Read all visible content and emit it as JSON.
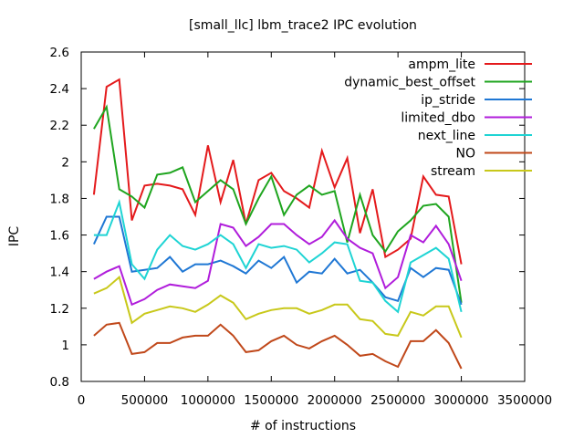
{
  "chart_data": {
    "type": "line",
    "title": "[small_llc] lbm_trace2 IPC evolution",
    "xlabel": "# of instructions",
    "ylabel": "IPC",
    "xlim": [
      0,
      3500000
    ],
    "ylim": [
      0.8,
      2.6
    ],
    "xticks": [
      0,
      500000,
      1000000,
      1500000,
      2000000,
      2500000,
      3000000,
      3500000
    ],
    "xtick_labels": [
      "0",
      "500000",
      "1000000",
      "1500000",
      "2000000",
      "2500000",
      "3000000",
      "3500000"
    ],
    "yticks": [
      0.8,
      1,
      1.2,
      1.4,
      1.6,
      1.8,
      2,
      2.2,
      2.4,
      2.6
    ],
    "ytick_labels": [
      "0.8",
      "1",
      "1.2",
      "1.4",
      "1.6",
      "1.8",
      "2",
      "2.2",
      "2.4",
      "2.6"
    ],
    "grid": false,
    "legend_position": "top-right",
    "x": [
      100000,
      200000,
      300000,
      400000,
      500000,
      600000,
      700000,
      800000,
      900000,
      1000000,
      1100000,
      1200000,
      1300000,
      1400000,
      1500000,
      1600000,
      1700000,
      1800000,
      1900000,
      2000000,
      2100000,
      2200000,
      2300000,
      2400000,
      2500000,
      2600000,
      2700000,
      2800000,
      2900000,
      3000000
    ],
    "series": [
      {
        "name": "ampm_lite",
        "color": "#e41a1c",
        "values": [
          1.82,
          2.41,
          2.45,
          1.68,
          1.87,
          1.88,
          1.87,
          1.85,
          1.71,
          2.09,
          1.78,
          2.01,
          1.66,
          1.9,
          1.94,
          1.84,
          1.8,
          1.75,
          2.06,
          1.86,
          2.02,
          1.61,
          1.85,
          1.48,
          1.52,
          1.58,
          1.92,
          1.82,
          1.81,
          1.44
        ]
      },
      {
        "name": "dynamic_best_offset",
        "color": "#1fa51f",
        "values": [
          2.18,
          2.3,
          1.85,
          1.81,
          1.75,
          1.93,
          1.94,
          1.97,
          1.78,
          1.84,
          1.9,
          1.85,
          1.66,
          1.8,
          1.92,
          1.71,
          1.82,
          1.87,
          1.82,
          1.84,
          1.56,
          1.82,
          1.6,
          1.51,
          1.62,
          1.68,
          1.76,
          1.77,
          1.7,
          1.23
        ]
      },
      {
        "name": "ip_stride",
        "color": "#1f77d4",
        "values": [
          1.55,
          1.7,
          1.7,
          1.4,
          1.41,
          1.42,
          1.48,
          1.4,
          1.44,
          1.44,
          1.46,
          1.43,
          1.39,
          1.46,
          1.42,
          1.48,
          1.34,
          1.4,
          1.39,
          1.47,
          1.39,
          1.41,
          1.34,
          1.26,
          1.24,
          1.42,
          1.37,
          1.42,
          1.41,
          1.22
        ]
      },
      {
        "name": "limited_dbo",
        "color": "#b01ddb",
        "values": [
          1.36,
          1.4,
          1.43,
          1.22,
          1.25,
          1.3,
          1.33,
          1.32,
          1.31,
          1.35,
          1.66,
          1.64,
          1.54,
          1.59,
          1.66,
          1.66,
          1.6,
          1.55,
          1.59,
          1.68,
          1.58,
          1.53,
          1.5,
          1.31,
          1.37,
          1.6,
          1.56,
          1.65,
          1.55,
          1.35
        ]
      },
      {
        "name": "next_line",
        "color": "#1fd4d4",
        "values": [
          1.6,
          1.6,
          1.78,
          1.44,
          1.36,
          1.52,
          1.6,
          1.54,
          1.52,
          1.55,
          1.6,
          1.55,
          1.42,
          1.55,
          1.53,
          1.54,
          1.52,
          1.45,
          1.5,
          1.56,
          1.55,
          1.35,
          1.34,
          1.24,
          1.18,
          1.45,
          1.49,
          1.53,
          1.47,
          1.18
        ]
      },
      {
        "name": "NO",
        "color": "#c0481a",
        "values": [
          1.05,
          1.11,
          1.12,
          0.95,
          0.96,
          1.01,
          1.01,
          1.04,
          1.05,
          1.05,
          1.11,
          1.05,
          0.96,
          0.97,
          1.02,
          1.05,
          1.0,
          0.98,
          1.02,
          1.05,
          1.0,
          0.94,
          0.95,
          0.91,
          0.88,
          1.02,
          1.02,
          1.08,
          1.01,
          0.87
        ]
      },
      {
        "name": "stream",
        "color": "#c8c81a",
        "values": [
          1.28,
          1.31,
          1.37,
          1.12,
          1.17,
          1.19,
          1.21,
          1.2,
          1.18,
          1.22,
          1.27,
          1.23,
          1.14,
          1.17,
          1.19,
          1.2,
          1.2,
          1.17,
          1.19,
          1.22,
          1.22,
          1.14,
          1.13,
          1.06,
          1.05,
          1.18,
          1.16,
          1.21,
          1.21,
          1.04
        ]
      }
    ]
  }
}
